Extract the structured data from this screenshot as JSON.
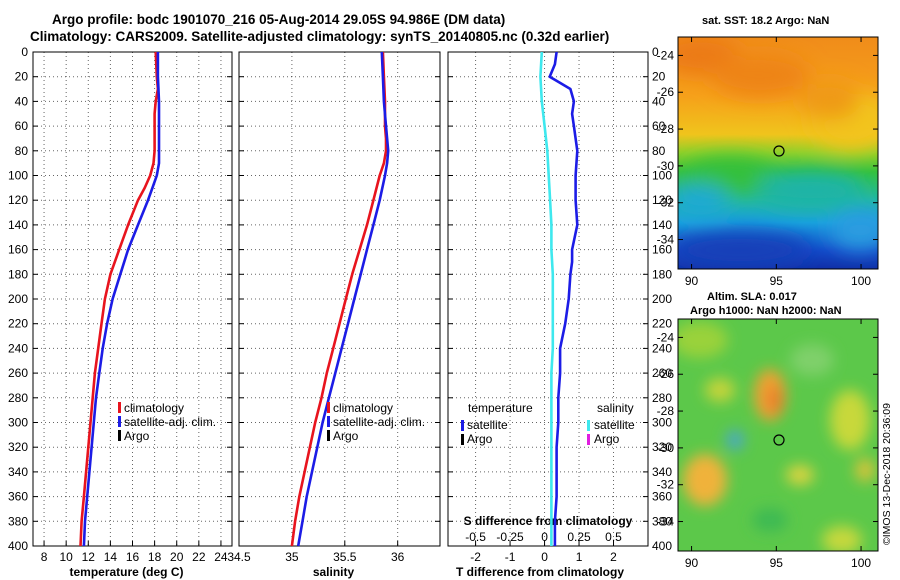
{
  "titles": {
    "line1": "Argo profile: bodc 1901070_216 05-Aug-2014 29.05S 94.986E (DM data)",
    "line2": "Climatology: CARS2009. Satellite-adjusted climatology: synTS_20140805.nc (0.32d earlier)"
  },
  "colors": {
    "climatology": "#e8141e",
    "satellite": "#1c1ce6",
    "argo": "#000000",
    "sat_salinity": "#3ee8ee",
    "argo_salinity": "#e01ee0"
  },
  "chart_data": [
    {
      "type": "line",
      "name": "temperature",
      "xlabel": "temperature (deg C)",
      "xlim": [
        7,
        25
      ],
      "xticks": [
        8,
        10,
        12,
        14,
        16,
        18,
        20,
        22,
        24
      ],
      "ylim": [
        400,
        0
      ],
      "yticks": [
        0,
        20,
        40,
        60,
        80,
        100,
        120,
        140,
        160,
        180,
        200,
        220,
        240,
        260,
        280,
        300,
        320,
        340,
        360,
        380,
        400
      ],
      "grid": true,
      "legend": "bottom-right",
      "legend_entries": [
        "climatology",
        "satellite-adj. clim.",
        "Argo"
      ],
      "series": [
        {
          "name": "climatology",
          "color": "#e8141e",
          "depth": [
            0,
            20,
            30,
            40,
            50,
            60,
            70,
            80,
            90,
            100,
            110,
            120,
            140,
            160,
            180,
            200,
            220,
            240,
            260,
            280,
            300,
            320,
            340,
            360,
            380,
            400
          ],
          "values": [
            18.1,
            18.2,
            18.3,
            18.1,
            18.0,
            18.0,
            18.0,
            18.0,
            17.9,
            17.6,
            17.1,
            16.5,
            15.6,
            14.8,
            14.0,
            13.5,
            13.2,
            12.9,
            12.6,
            12.4,
            12.2,
            12.0,
            11.8,
            11.6,
            11.4,
            11.3
          ]
        },
        {
          "name": "satellite-adj. clim.",
          "color": "#1c1ce6",
          "depth": [
            0,
            20,
            40,
            60,
            80,
            90,
            100,
            110,
            120,
            140,
            160,
            180,
            200,
            220,
            240,
            260,
            280,
            300,
            320,
            340,
            360,
            380,
            400
          ],
          "values": [
            18.3,
            18.3,
            18.4,
            18.4,
            18.4,
            18.4,
            18.2,
            17.8,
            17.4,
            16.5,
            15.6,
            14.9,
            14.2,
            13.7,
            13.3,
            13.0,
            12.7,
            12.5,
            12.3,
            12.1,
            11.9,
            11.7,
            11.6
          ]
        }
      ]
    },
    {
      "type": "line",
      "name": "salinity",
      "xlabel": "salinity",
      "xlim": [
        34.5,
        36.4
      ],
      "xticks": [
        34.5,
        35,
        35.5,
        36
      ],
      "xticklabels": [
        "34.5",
        "35",
        "35.5",
        "36"
      ],
      "ylim": [
        400,
        0
      ],
      "grid": true,
      "legend": "bottom-right",
      "legend_entries": [
        "climatology",
        "satellite-adj. clim.",
        "Argo"
      ],
      "series": [
        {
          "name": "climatology",
          "color": "#e8141e",
          "depth": [
            0,
            20,
            40,
            60,
            70,
            80,
            90,
            100,
            120,
            140,
            160,
            180,
            200,
            220,
            240,
            260,
            280,
            300,
            320,
            340,
            360,
            380,
            400
          ],
          "values": [
            35.86,
            35.87,
            35.88,
            35.88,
            35.89,
            35.89,
            35.87,
            35.83,
            35.77,
            35.71,
            35.64,
            35.57,
            35.51,
            35.45,
            35.39,
            35.33,
            35.28,
            35.22,
            35.17,
            35.12,
            35.07,
            35.03,
            35.0
          ]
        },
        {
          "name": "satellite-adj. clim.",
          "color": "#1c1ce6",
          "depth": [
            0,
            20,
            40,
            60,
            70,
            80,
            90,
            100,
            120,
            140,
            160,
            180,
            200,
            220,
            240,
            260,
            280,
            300,
            320,
            340,
            360,
            380,
            400
          ],
          "values": [
            35.85,
            35.86,
            35.87,
            35.89,
            35.9,
            35.91,
            35.9,
            35.88,
            35.83,
            35.77,
            35.71,
            35.65,
            35.59,
            35.53,
            35.47,
            35.41,
            35.35,
            35.29,
            35.24,
            35.19,
            35.14,
            35.1,
            35.06
          ]
        }
      ]
    },
    {
      "type": "line",
      "name": "difference",
      "xlabel": "T difference from climatology",
      "xlabel_top": "S difference from climatology",
      "xlim": [
        -2.8,
        3.0
      ],
      "xticks": [
        -2,
        -1,
        0,
        1,
        2
      ],
      "xticks_s": [
        -0.5,
        -0.25,
        0,
        0.25,
        0.5
      ],
      "xticklabels_s": [
        "-0.5",
        "-0.25",
        "0",
        "0.25",
        "0.5"
      ],
      "ylim": [
        400,
        0
      ],
      "grid": true,
      "legend_left_title": "temperature",
      "legend_left_entries": [
        "satellite",
        "Argo"
      ],
      "legend_right_title": "salinity",
      "legend_right_entries": [
        "satellite",
        "Argo"
      ],
      "series": [
        {
          "name": "T satellite",
          "color": "#1c1ce6",
          "depth": [
            0,
            10,
            20,
            25,
            30,
            40,
            50,
            60,
            80,
            100,
            120,
            140,
            160,
            170,
            180,
            200,
            220,
            240,
            260,
            280,
            300,
            320,
            340,
            360,
            380,
            400
          ],
          "values": [
            0.35,
            0.3,
            0.15,
            0.45,
            0.75,
            0.85,
            0.8,
            0.85,
            0.95,
            0.9,
            0.9,
            0.95,
            0.8,
            0.8,
            0.75,
            0.7,
            0.6,
            0.45,
            0.45,
            0.4,
            0.4,
            0.35,
            0.35,
            0.35,
            0.3,
            0.3
          ]
        },
        {
          "name": "S satellite",
          "color": "#3ee8ee",
          "depth": [
            0,
            20,
            40,
            60,
            80,
            100,
            120,
            140,
            160,
            180,
            200,
            220,
            240,
            260,
            280,
            300,
            320,
            340,
            360,
            380,
            400
          ],
          "values": [
            -0.02,
            -0.03,
            -0.02,
            0.0,
            0.02,
            0.03,
            0.04,
            0.05,
            0.05,
            0.06,
            0.06,
            0.06,
            0.06,
            0.05,
            0.05,
            0.05,
            0.05,
            0.05,
            0.05,
            0.05,
            0.05
          ]
        }
      ]
    }
  ],
  "maps": [
    {
      "name": "sst-map",
      "title": "sat. SST: 18.2 Argo: NaN",
      "xticks": [
        90,
        95,
        100
      ],
      "yticks": [
        -24,
        -26,
        -28,
        -30,
        -32,
        -34
      ]
    },
    {
      "name": "sla-map",
      "title_line1": "Altim. SLA: 0.017",
      "title_line2": "Argo h1000: NaN h2000: NaN",
      "xticks": [
        90,
        95,
        100
      ],
      "yticks": [
        -24,
        -26,
        -28,
        -30,
        -32,
        -34
      ]
    }
  ],
  "stamp": "©IMOS 13-Dec-2018 20:36:09"
}
